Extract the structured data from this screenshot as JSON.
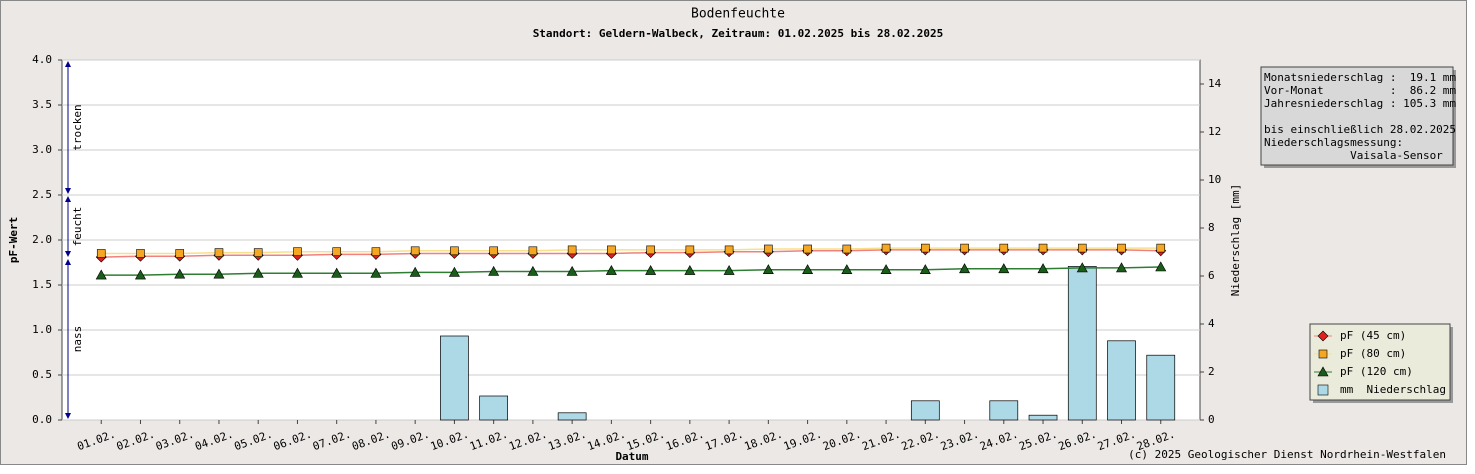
{
  "chart_data": {
    "type": "line",
    "title": "Bodenfeuchte",
    "subtitle": "Standort: Geldern-Walbeck, Zeitraum: 01.02.2025 bis 28.02.2025",
    "x_label": "Datum",
    "y_label": "pF-Wert",
    "y2_label": "Niederschlag [mm]",
    "categories": [
      "01.02.",
      "02.02.",
      "03.02.",
      "04.02.",
      "05.02.",
      "06.02.",
      "07.02.",
      "08.02.",
      "09.02.",
      "10.02.",
      "11.02.",
      "12.02.",
      "13.02.",
      "14.02.",
      "15.02.",
      "16.02.",
      "17.02.",
      "18.02.",
      "19.02.",
      "20.02.",
      "21.02.",
      "22.02.",
      "23.02.",
      "24.02.",
      "25.02.",
      "26.02.",
      "27.02.",
      "28.02."
    ],
    "ylim": [
      0,
      4
    ],
    "yticks": [
      {
        "value": 0,
        "label": "0.0"
      },
      {
        "value": 0.5,
        "label": "0.5"
      },
      {
        "value": 1,
        "label": "1.0"
      },
      {
        "value": 1.5,
        "label": "1.5"
      },
      {
        "value": 2,
        "label": "2.0"
      },
      {
        "value": 2.5,
        "label": "2.5"
      },
      {
        "value": 3,
        "label": "3.0"
      },
      {
        "value": 3.5,
        "label": "3.5"
      },
      {
        "value": 4,
        "label": "4.0"
      }
    ],
    "y2lim": [
      0,
      15
    ],
    "y2ticks": [
      0,
      2,
      4,
      6,
      8,
      10,
      12,
      14
    ],
    "grid": true,
    "zones": [
      {
        "label": "trocken",
        "range": [
          2.5,
          4
        ]
      },
      {
        "label": "feucht",
        "range": [
          1.8,
          2.5
        ]
      },
      {
        "label": "nass",
        "range": [
          0,
          1.8
        ]
      }
    ],
    "series": [
      {
        "name": "pF (45 cm)",
        "type": "line",
        "marker": "diamond",
        "color": "#e02020",
        "line_color": "#f08080",
        "values": [
          1.81,
          1.82,
          1.82,
          1.83,
          1.83,
          1.83,
          1.84,
          1.84,
          1.85,
          1.85,
          1.85,
          1.85,
          1.85,
          1.85,
          1.86,
          1.86,
          1.87,
          1.87,
          1.88,
          1.88,
          1.89,
          1.89,
          1.89,
          1.89,
          1.89,
          1.89,
          1.89,
          1.88
        ]
      },
      {
        "name": "pF (80 cm)",
        "type": "line",
        "marker": "square",
        "color": "#f5a623",
        "line_color": "#f8e08a",
        "values": [
          1.85,
          1.85,
          1.85,
          1.86,
          1.86,
          1.87,
          1.87,
          1.87,
          1.88,
          1.88,
          1.88,
          1.88,
          1.89,
          1.89,
          1.89,
          1.89,
          1.89,
          1.9,
          1.9,
          1.9,
          1.91,
          1.91,
          1.91,
          1.91,
          1.91,
          1.91,
          1.91,
          1.91
        ]
      },
      {
        "name": "pF (120 cm)",
        "type": "line",
        "marker": "triangle",
        "color": "#1a5c1a",
        "line_color": "#2e7d32",
        "values": [
          1.61,
          1.61,
          1.62,
          1.62,
          1.63,
          1.63,
          1.63,
          1.63,
          1.64,
          1.64,
          1.65,
          1.65,
          1.65,
          1.66,
          1.66,
          1.66,
          1.66,
          1.67,
          1.67,
          1.67,
          1.67,
          1.67,
          1.68,
          1.68,
          1.68,
          1.69,
          1.69,
          1.7
        ]
      },
      {
        "name": "mm  Niederschlag",
        "type": "bar",
        "axis": "y2",
        "color": "#add8e6",
        "values": [
          0,
          0,
          0,
          0,
          0,
          0,
          0,
          0,
          0,
          3.5,
          1.0,
          0,
          0.3,
          0,
          0,
          0,
          0,
          0,
          0,
          0,
          0,
          0.8,
          0,
          0.8,
          0.2,
          6.4,
          3.3,
          2.7
        ]
      }
    ],
    "info_box": [
      "Monatsniederschlag :  19.1 mm",
      "Vor-Monat          :  86.2 mm",
      "Jahresniederschlag : 105.3 mm",
      "",
      "bis einschließlich 28.02.2025",
      "Niederschlagsmessung:",
      "             Vaisala-Sensor"
    ],
    "footer": "(c) 2025 Geologischer Dienst Nordrhein-Westfalen"
  }
}
